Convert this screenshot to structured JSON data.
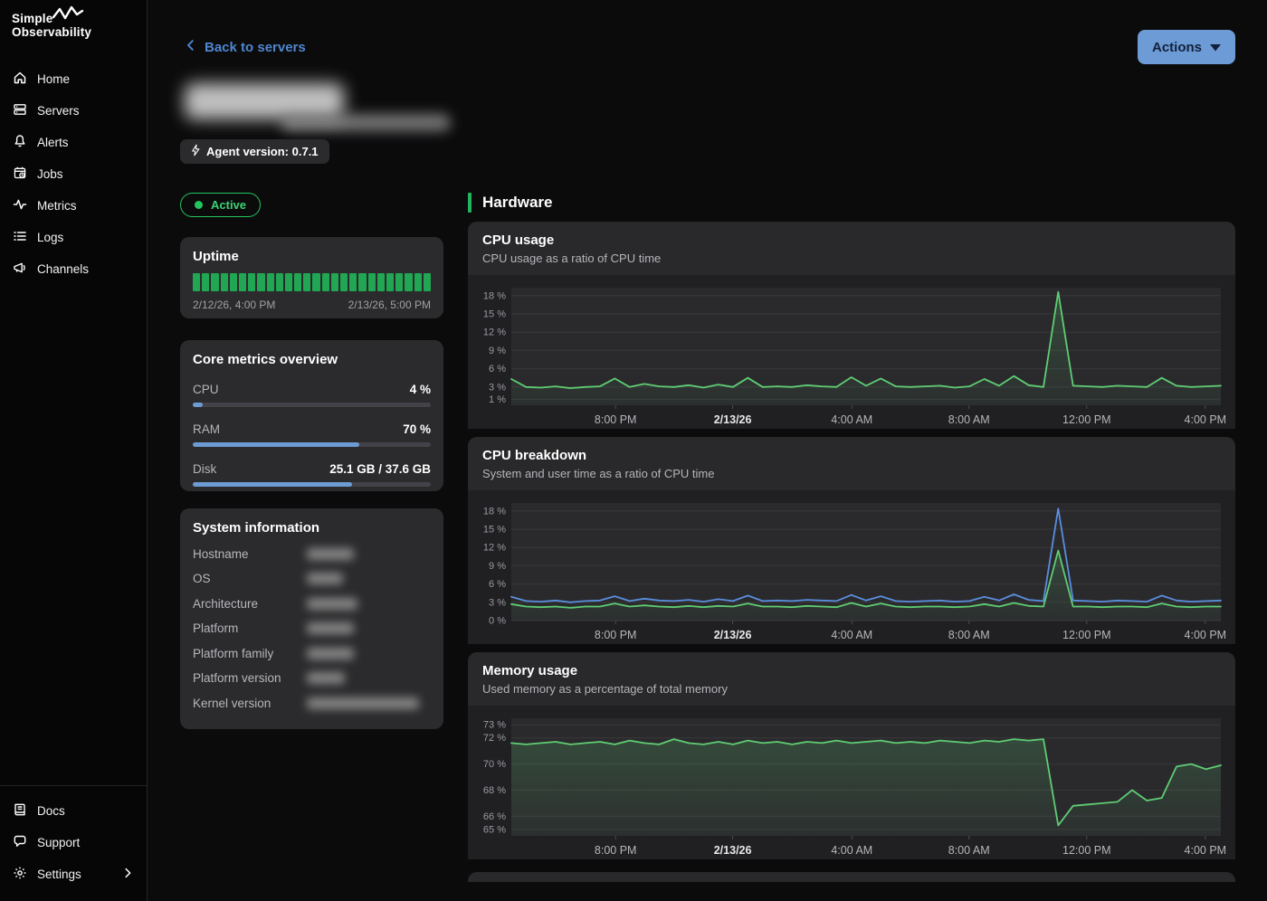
{
  "colors": {
    "accent_green": "#22c55e",
    "line_green": "#5fcd73",
    "line_blue": "#5a8ede",
    "progress_blue": "#6d9bd4",
    "uptime_green": "#21a653",
    "link_blue": "#4f86cf",
    "actions_btn_bg": "#6c9bd6"
  },
  "sidebar": {
    "logo_line1": "Simple",
    "logo_line2": "Observability",
    "items": [
      {
        "label": "Home",
        "icon": "home-icon"
      },
      {
        "label": "Servers",
        "icon": "servers-icon"
      },
      {
        "label": "Alerts",
        "icon": "bell-icon"
      },
      {
        "label": "Jobs",
        "icon": "calendar-clock-icon"
      },
      {
        "label": "Metrics",
        "icon": "pulse-icon"
      },
      {
        "label": "Logs",
        "icon": "list-icon"
      },
      {
        "label": "Channels",
        "icon": "megaphone-icon"
      }
    ],
    "footer_items": [
      {
        "label": "Docs",
        "icon": "book-icon"
      },
      {
        "label": "Support",
        "icon": "chat-icon"
      },
      {
        "label": "Settings",
        "icon": "gear-icon",
        "trailing_icon": "chevron-right-icon"
      }
    ]
  },
  "header": {
    "back_label": "Back to servers",
    "actions_label": "Actions",
    "agent_badge": "Agent version: 0.7.1",
    "status_label": "Active"
  },
  "uptime": {
    "title": "Uptime",
    "segments": 26,
    "range_start": "2/12/26, 4:00 PM",
    "range_end": "2/13/26, 5:00 PM"
  },
  "core_metrics": {
    "title": "Core metrics overview",
    "rows": [
      {
        "label": "CPU",
        "value": "4 %",
        "pct": 4
      },
      {
        "label": "RAM",
        "value": "70 %",
        "pct": 70
      },
      {
        "label": "Disk",
        "value": "25.1 GB / 37.6 GB",
        "pct": 67
      }
    ]
  },
  "system_info": {
    "title": "System information",
    "rows": [
      {
        "label": "Hostname",
        "blob_style": "width:52px"
      },
      {
        "label": "OS",
        "blob_style": "width:40px"
      },
      {
        "label": "Architecture",
        "blob_style": "width:56px"
      },
      {
        "label": "Platform",
        "blob_style": "width:52px"
      },
      {
        "label": "Platform family",
        "blob_style": "width:52px"
      },
      {
        "label": "Platform version",
        "blob_style": "width:42px"
      },
      {
        "label": "Kernel version",
        "blob_style": "width:124px"
      }
    ]
  },
  "hardware": {
    "section_title": "Hardware"
  },
  "chart_data": [
    {
      "type": "line",
      "title": "CPU usage",
      "subtitle": "CPU usage as a ratio of CPU time",
      "ylim": [
        0,
        19.3
      ],
      "grid": true,
      "legend": "none",
      "y_ticks": [
        {
          "v": 18,
          "label": "18 %"
        },
        {
          "v": 15,
          "label": "15 %"
        },
        {
          "v": 12,
          "label": "12 %"
        },
        {
          "v": 9,
          "label": "9 %"
        },
        {
          "v": 6,
          "label": "6 %"
        },
        {
          "v": 3,
          "label": "3 %"
        },
        {
          "v": 1,
          "label": "1 %"
        }
      ],
      "x_ticks": [
        {
          "f": 0.147,
          "label": "8:00 PM"
        },
        {
          "f": 0.312,
          "label": "2/13/26",
          "bold": true
        },
        {
          "f": 0.48,
          "label": "4:00 AM"
        },
        {
          "f": 0.645,
          "label": "8:00 AM"
        },
        {
          "f": 0.811,
          "label": "12:00 PM"
        },
        {
          "f": 0.978,
          "label": "4:00 PM"
        }
      ],
      "x_range": [
        "2/12/26 4:30 PM",
        "2/13/26 5:00 PM"
      ],
      "series": [
        {
          "name": "cpu",
          "color": "#5fcd73",
          "fill": true,
          "values": [
            4.3,
            3.0,
            2.9,
            3.1,
            2.8,
            3.0,
            3.1,
            4.4,
            3.0,
            3.5,
            3.1,
            3.0,
            3.3,
            2.9,
            3.4,
            3.0,
            4.5,
            3.0,
            3.1,
            3.0,
            3.3,
            3.1,
            3.0,
            4.6,
            3.2,
            4.4,
            3.1,
            3.0,
            3.1,
            3.2,
            2.9,
            3.1,
            4.3,
            3.2,
            4.8,
            3.3,
            3.0,
            18.6,
            3.2,
            3.1,
            3.0,
            3.2,
            3.1,
            3.0,
            4.5,
            3.2,
            3.0,
            3.1,
            3.2
          ]
        }
      ]
    },
    {
      "type": "line",
      "title": "CPU breakdown",
      "subtitle": "System and user time as a ratio of CPU time",
      "ylim": [
        0,
        19.3
      ],
      "grid": true,
      "legend": "none",
      "y_ticks": [
        {
          "v": 18,
          "label": "18 %"
        },
        {
          "v": 15,
          "label": "15 %"
        },
        {
          "v": 12,
          "label": "12 %"
        },
        {
          "v": 9,
          "label": "9 %"
        },
        {
          "v": 6,
          "label": "6 %"
        },
        {
          "v": 3,
          "label": "3 %"
        },
        {
          "v": 0,
          "label": "0 %"
        }
      ],
      "x_ticks": [
        {
          "f": 0.147,
          "label": "8:00 PM"
        },
        {
          "f": 0.312,
          "label": "2/13/26",
          "bold": true
        },
        {
          "f": 0.48,
          "label": "4:00 AM"
        },
        {
          "f": 0.645,
          "label": "8:00 AM"
        },
        {
          "f": 0.811,
          "label": "12:00 PM"
        },
        {
          "f": 0.978,
          "label": "4:00 PM"
        }
      ],
      "x_range": [
        "2/12/26 4:30 PM",
        "2/13/26 5:00 PM"
      ],
      "series": [
        {
          "name": "user",
          "color": "#5a8ede",
          "fill": false,
          "values": [
            3.9,
            3.2,
            3.1,
            3.3,
            3.0,
            3.2,
            3.3,
            4.0,
            3.2,
            3.6,
            3.3,
            3.2,
            3.4,
            3.1,
            3.5,
            3.2,
            4.1,
            3.2,
            3.3,
            3.2,
            3.4,
            3.3,
            3.2,
            4.2,
            3.3,
            4.0,
            3.2,
            3.1,
            3.2,
            3.3,
            3.1,
            3.2,
            3.9,
            3.3,
            4.3,
            3.4,
            3.2,
            18.4,
            3.3,
            3.2,
            3.1,
            3.3,
            3.2,
            3.1,
            4.1,
            3.3,
            3.1,
            3.2,
            3.3
          ]
        },
        {
          "name": "system",
          "color": "#5fcd73",
          "fill": true,
          "values": [
            2.7,
            2.3,
            2.2,
            2.3,
            2.1,
            2.3,
            2.3,
            2.8,
            2.3,
            2.5,
            2.3,
            2.2,
            2.4,
            2.2,
            2.4,
            2.3,
            2.8,
            2.3,
            2.3,
            2.2,
            2.4,
            2.3,
            2.2,
            2.9,
            2.3,
            2.8,
            2.3,
            2.2,
            2.3,
            2.3,
            2.2,
            2.3,
            2.7,
            2.3,
            2.9,
            2.4,
            2.3,
            11.5,
            2.3,
            2.3,
            2.2,
            2.3,
            2.3,
            2.2,
            2.8,
            2.3,
            2.2,
            2.3,
            2.3
          ]
        }
      ]
    },
    {
      "type": "line",
      "title": "Memory usage",
      "subtitle": "Used memory as a percentage of total memory",
      "ylim": [
        64.5,
        73.5
      ],
      "grid": true,
      "legend": "none",
      "y_ticks": [
        {
          "v": 73,
          "label": "73 %"
        },
        {
          "v": 72,
          "label": "72 %"
        },
        {
          "v": 70,
          "label": "70 %"
        },
        {
          "v": 68,
          "label": "68 %"
        },
        {
          "v": 66,
          "label": "66 %"
        },
        {
          "v": 65,
          "label": "65 %"
        }
      ],
      "x_ticks": [
        {
          "f": 0.147,
          "label": "8:00 PM"
        },
        {
          "f": 0.312,
          "label": "2/13/26",
          "bold": true
        },
        {
          "f": 0.48,
          "label": "4:00 AM"
        },
        {
          "f": 0.645,
          "label": "8:00 AM"
        },
        {
          "f": 0.811,
          "label": "12:00 PM"
        },
        {
          "f": 0.978,
          "label": "4:00 PM"
        }
      ],
      "x_range": [
        "2/12/26 4:30 PM",
        "2/13/26 5:00 PM"
      ],
      "series": [
        {
          "name": "memory",
          "color": "#5fcd73",
          "fill": true,
          "values": [
            71.6,
            71.5,
            71.6,
            71.7,
            71.5,
            71.6,
            71.7,
            71.5,
            71.8,
            71.6,
            71.5,
            71.9,
            71.6,
            71.5,
            71.7,
            71.5,
            71.8,
            71.6,
            71.7,
            71.5,
            71.7,
            71.6,
            71.8,
            71.6,
            71.7,
            71.8,
            71.6,
            71.7,
            71.6,
            71.8,
            71.7,
            71.6,
            71.8,
            71.7,
            71.9,
            71.8,
            71.9,
            65.3,
            66.8,
            66.9,
            67.0,
            67.1,
            68.0,
            67.2,
            67.4,
            69.8,
            70.0,
            69.6,
            69.9
          ]
        }
      ]
    }
  ]
}
